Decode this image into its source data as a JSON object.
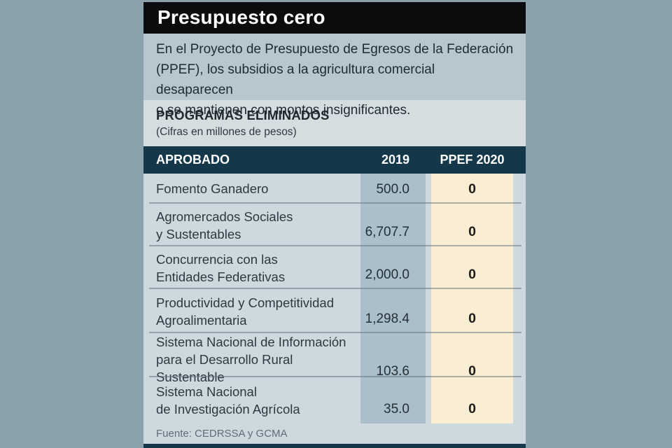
{
  "card": {
    "title": "Presupuesto cero",
    "intro": "En el Proyecto de Presupuesto de Egresos de la Federación\n(PPEF), los subsidios a la agricultura comercial desaparecen\no se mantienen con montos insignificantes.",
    "section": {
      "heading": "PROGRAMAS ELIMINADOS",
      "subheading": "(Cifras en millones de pesos)"
    },
    "table": {
      "headers": {
        "program": "APROBADO",
        "y2019": "2019",
        "ppef2020": "PPEF 2020"
      },
      "rows": [
        {
          "name": "Fomento Ganadero",
          "y2019": "500.0",
          "ppef": "0"
        },
        {
          "name": "Agromercados Sociales\ny Sustentables",
          "y2019": "6,707.7",
          "ppef": "0"
        },
        {
          "name": "Concurrencia con las\nEntidades Federativas",
          "y2019": "2,000.0",
          "ppef": "0"
        },
        {
          "name": "Productividad y Competitividad\nAgroalimentaria",
          "y2019": "1,298.4",
          "ppef": "0"
        },
        {
          "name": "Sistema Nacional de Información\npara el Desarrollo Rural Sustentable",
          "y2019": "103.6",
          "ppef": "0"
        },
        {
          "name": "Sistema Nacional\nde Investigación Agrícola",
          "y2019": "35.0",
          "ppef": "0"
        }
      ]
    },
    "source": "Fuente: CEDRSSA y GCMA"
  },
  "colors": {
    "page_background": "#8ba2ac",
    "title_bar": "#0b0c0d",
    "intro_background": "#b6c7cf",
    "section_background": "#d5dde1",
    "header_navy": "#14384a",
    "rows_background": "#cdd9de",
    "band_2019": "#aabfc9",
    "band_ppef": "#f9edd3",
    "title_text": "#ffffff"
  },
  "chart_data": {
    "type": "table",
    "title": "Presupuesto cero",
    "subtitle": "PROGRAMAS ELIMINADOS (Cifras en millones de pesos)",
    "columns": [
      "APROBADO",
      "2019",
      "PPEF 2020"
    ],
    "rows": [
      [
        "Fomento Ganadero",
        500.0,
        0
      ],
      [
        "Agromercados Sociales y Sustentables",
        6707.7,
        0
      ],
      [
        "Concurrencia con las Entidades Federativas",
        2000.0,
        0
      ],
      [
        "Productividad y Competitividad Agroalimentaria",
        1298.4,
        0
      ],
      [
        "Sistema Nacional de Información para el Desarrollo Rural Sustentable",
        103.6,
        0
      ],
      [
        "Sistema Nacional de Investigación Agrícola",
        35.0,
        0
      ]
    ],
    "units": "millones de pesos",
    "source": "Fuente: CEDRSSA y GCMA"
  }
}
